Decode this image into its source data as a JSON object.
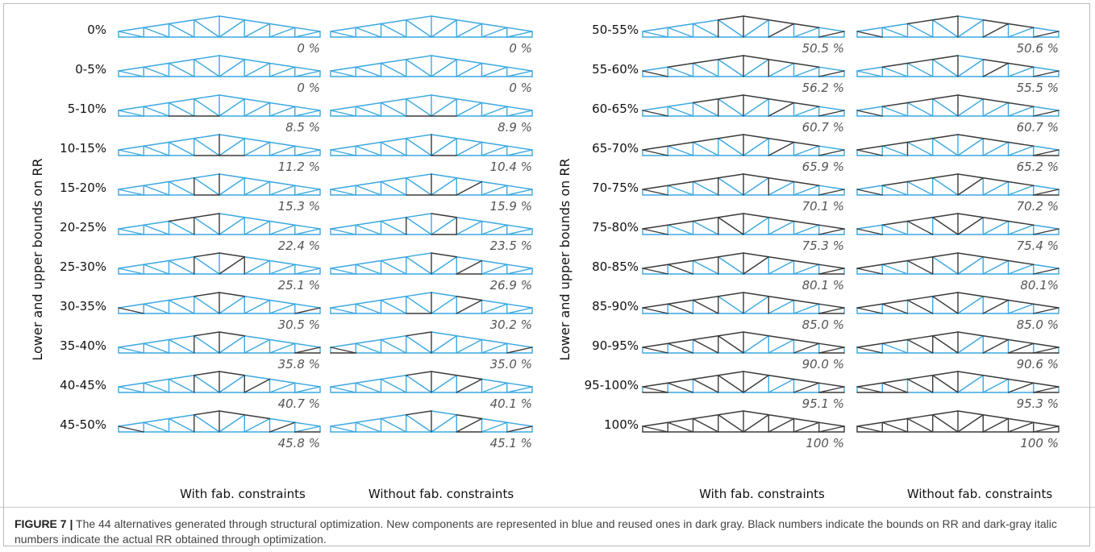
{
  "colors": {
    "new_component": "#3ba8e0",
    "reused_component": "#3a3a3a",
    "bound_text": "#111111",
    "rr_text": "#555555"
  },
  "diagram": {
    "y_axis_title": "Lower and upper bounds on RR",
    "column_labels": [
      "With fab. constraints",
      "Without fab. constraints"
    ],
    "panels": [
      {
        "rows": [
          {
            "bound": "0%",
            "rr_with": "0 %",
            "rr_without": "0 %",
            "reused_with": [],
            "reused_without": []
          },
          {
            "bound": "0-5%",
            "rr_with": "0 %",
            "rr_without": "0 %",
            "reused_with": [],
            "reused_without": []
          },
          {
            "bound": "5-10%",
            "rr_with": "8.5 %",
            "rr_without": "8.9 %",
            "reused_with": [
              "b2",
              "b3"
            ],
            "reused_without": [
              "b3",
              "b4"
            ]
          },
          {
            "bound": "10-15%",
            "rr_with": "11.2 %",
            "rr_without": "10.4 %",
            "reused_with": [
              "v4",
              "b3",
              "b4"
            ],
            "reused_without": [
              "v4",
              "b4"
            ]
          },
          {
            "bound": "15-20%",
            "rr_with": "15.3 %",
            "rr_without": "15.9 %",
            "reused_with": [
              "v3",
              "v4",
              "b3"
            ],
            "reused_without": [
              "v4",
              "b3",
              "b4",
              "d5"
            ]
          },
          {
            "bound": "20-25%",
            "rr_with": "22.4 %",
            "rr_without": "23.5 %",
            "reused_with": [
              "t2",
              "t3",
              "v3",
              "v4"
            ],
            "reused_without": [
              "v3",
              "t4",
              "b4",
              "v5"
            ]
          },
          {
            "bound": "25-30%",
            "rr_with": "25.1 %",
            "rr_without": "26.9 %",
            "reused_with": [
              "t3",
              "t4",
              "v3",
              "d4",
              "v5"
            ],
            "reused_without": [
              "v4",
              "t4",
              "d5",
              "b5"
            ]
          },
          {
            "bound": "30-35%",
            "rr_with": "30.5 %",
            "rr_without": "30.2 %",
            "reused_with": [
              "d0",
              "t3",
              "t4",
              "v4",
              "d7"
            ],
            "reused_without": [
              "v4",
              "b3",
              "t5",
              "d5"
            ]
          },
          {
            "bound": "35-40%",
            "rr_with": "35.8 %",
            "rr_without": "35.0 %",
            "reused_with": [
              "t3",
              "t4",
              "v3",
              "v4",
              "d7",
              "b7"
            ],
            "reused_without": [
              "d0",
              "b0",
              "t3",
              "v4",
              "d7"
            ]
          },
          {
            "bound": "40-45%",
            "rr_with": "40.7 %",
            "rr_without": "40.1 %",
            "reused_with": [
              "t3",
              "t4",
              "v3",
              "v4",
              "v5",
              "d5"
            ],
            "reused_without": [
              "t3",
              "t4",
              "v4",
              "d5",
              "t5"
            ]
          },
          {
            "bound": "45-50%",
            "rr_with": "45.8 %",
            "rr_without": "45.1 %",
            "reused_with": [
              "d0",
              "t3",
              "t4",
              "v3",
              "v4",
              "t5",
              "d6",
              "b7"
            ],
            "reused_without": [
              "t3",
              "v4",
              "d5",
              "t5",
              "b5",
              "d7"
            ]
          }
        ]
      },
      {
        "rows": [
          {
            "bound": "50-55%",
            "rr_with": "50.5 %",
            "rr_without": "50.6 %",
            "reused_with": [
              "t3",
              "t4",
              "v3",
              "v4",
              "t5",
              "d5",
              "t6",
              "d7"
            ],
            "reused_without": [
              "d0",
              "t2",
              "t3",
              "v4",
              "t5",
              "d5",
              "t6",
              "d7"
            ]
          },
          {
            "bound": "55-60%",
            "rr_with": "56.2 %",
            "rr_without": "55.5 %",
            "reused_with": [
              "d0",
              "t1",
              "t2",
              "t3",
              "t4",
              "v4",
              "t5",
              "v5",
              "t6",
              "d7"
            ],
            "reused_without": [
              "t1",
              "t2",
              "t3",
              "v4",
              "t5",
              "d5",
              "t6",
              "d7"
            ]
          },
          {
            "bound": "60-65%",
            "rr_with": "60.7 %",
            "rr_without": "60.7 %",
            "reused_with": [
              "d0",
              "t2",
              "t3",
              "t4",
              "v3",
              "v4",
              "t5",
              "d5",
              "t6",
              "d7"
            ],
            "reused_without": [
              "d0",
              "t1",
              "t2",
              "t3",
              "t4",
              "v4",
              "t5",
              "t6",
              "d7"
            ]
          },
          {
            "bound": "65-70%",
            "rr_with": "65.9 %",
            "rr_without": "65.2 %",
            "reused_with": [
              "d0",
              "t0",
              "t1",
              "t2",
              "t3",
              "t4",
              "v4",
              "t5",
              "d5",
              "t6",
              "d7"
            ],
            "reused_without": [
              "d0",
              "t0",
              "t1",
              "t2",
              "t3",
              "t4",
              "v2",
              "t5",
              "t6",
              "d7",
              "b7"
            ]
          },
          {
            "bound": "70-75%",
            "rr_with": "70.1 %",
            "rr_without": "70.2 %",
            "reused_with": [
              "d0",
              "t0",
              "t1",
              "t2",
              "t3",
              "t4",
              "v3",
              "v4",
              "t5",
              "v5",
              "t6",
              "d7"
            ],
            "reused_without": [
              "d0",
              "t1",
              "t2",
              "t3",
              "t4",
              "v4",
              "d4",
              "t5",
              "t6",
              "d7",
              "b7"
            ]
          },
          {
            "bound": "75-80%",
            "rr_with": "75.3 %",
            "rr_without": "75.4 %",
            "reused_with": [
              "d0",
              "t0",
              "t1",
              "t2",
              "t3",
              "t4",
              "v3",
              "d3",
              "v4",
              "t5",
              "t6",
              "t7",
              "d7"
            ],
            "reused_without": [
              "d0",
              "t1",
              "t2",
              "d2",
              "t3",
              "t4",
              "d3",
              "v4",
              "d4",
              "t5",
              "t6",
              "d7"
            ]
          },
          {
            "bound": "80-85%",
            "rr_with": "80.1 %",
            "rr_without": "80.1%",
            "reused_with": [
              "d0",
              "t0",
              "t1",
              "d1",
              "t2",
              "t3",
              "t4",
              "v3",
              "v4",
              "d4",
              "t5",
              "t6",
              "t7",
              "d7",
              "b7"
            ],
            "reused_without": [
              "d0",
              "t0",
              "t1",
              "t2",
              "d2",
              "t3",
              "t4",
              "v3",
              "v4",
              "t5",
              "t6",
              "d7"
            ]
          },
          {
            "bound": "85-90%",
            "rr_with": "85.0 %",
            "rr_without": "85.0 %",
            "reused_with": [
              "d0",
              "t0",
              "t1",
              "d1",
              "t2",
              "t3",
              "d2",
              "t4",
              "v3",
              "v4",
              "t5",
              "v5",
              "t6",
              "t7",
              "d7",
              "b7"
            ],
            "reused_without": [
              "d0",
              "t0",
              "t1",
              "d1",
              "t2",
              "d2",
              "t3",
              "d3",
              "t4",
              "v4",
              "t5",
              "d5",
              "t6",
              "t7",
              "d7"
            ]
          },
          {
            "bound": "90-95%",
            "rr_with": "90.0 %",
            "rr_without": "90.6 %",
            "reused_with": [
              "d0",
              "t0",
              "t1",
              "d1",
              "t2",
              "d2",
              "t3",
              "d3",
              "t4",
              "v3",
              "v4",
              "t5",
              "t6",
              "d6",
              "t7",
              "d7",
              "b7"
            ],
            "reused_without": [
              "d0",
              "t0",
              "t1",
              "t2",
              "d2",
              "t3",
              "d3",
              "t4",
              "v3",
              "v4",
              "t5",
              "d5",
              "t6",
              "d6",
              "t7",
              "d7",
              "b6",
              "b7"
            ]
          },
          {
            "bound": "95-100%",
            "rr_with": "95.1 %",
            "rr_without": "95.3 %",
            "reused_with": [
              "d0",
              "t0",
              "t1",
              "d1",
              "t2",
              "d2",
              "t3",
              "d3",
              "t4",
              "v3",
              "v4",
              "d4",
              "t5",
              "t6",
              "d6",
              "t7",
              "d7",
              "b0",
              "b7"
            ],
            "reused_without": [
              "d0",
              "t0",
              "t1",
              "d1",
              "t2",
              "d2",
              "t3",
              "d3",
              "t4",
              "v3",
              "v4",
              "t5",
              "t6",
              "d6",
              "t7",
              "d7",
              "b0",
              "b1",
              "b7"
            ]
          },
          {
            "bound": "100%",
            "rr_with": "100 %",
            "rr_without": "100 %",
            "reused_with": "all",
            "reused_without": "all"
          }
        ]
      }
    ]
  },
  "caption": {
    "label": "FIGURE 7 |",
    "text": " The 44 alternatives generated through structural optimization. New components are represented in blue and reused ones in dark gray. Black numbers indicate the bounds on RR and dark-gray italic numbers indicate the actual RR obtained through optimization."
  }
}
